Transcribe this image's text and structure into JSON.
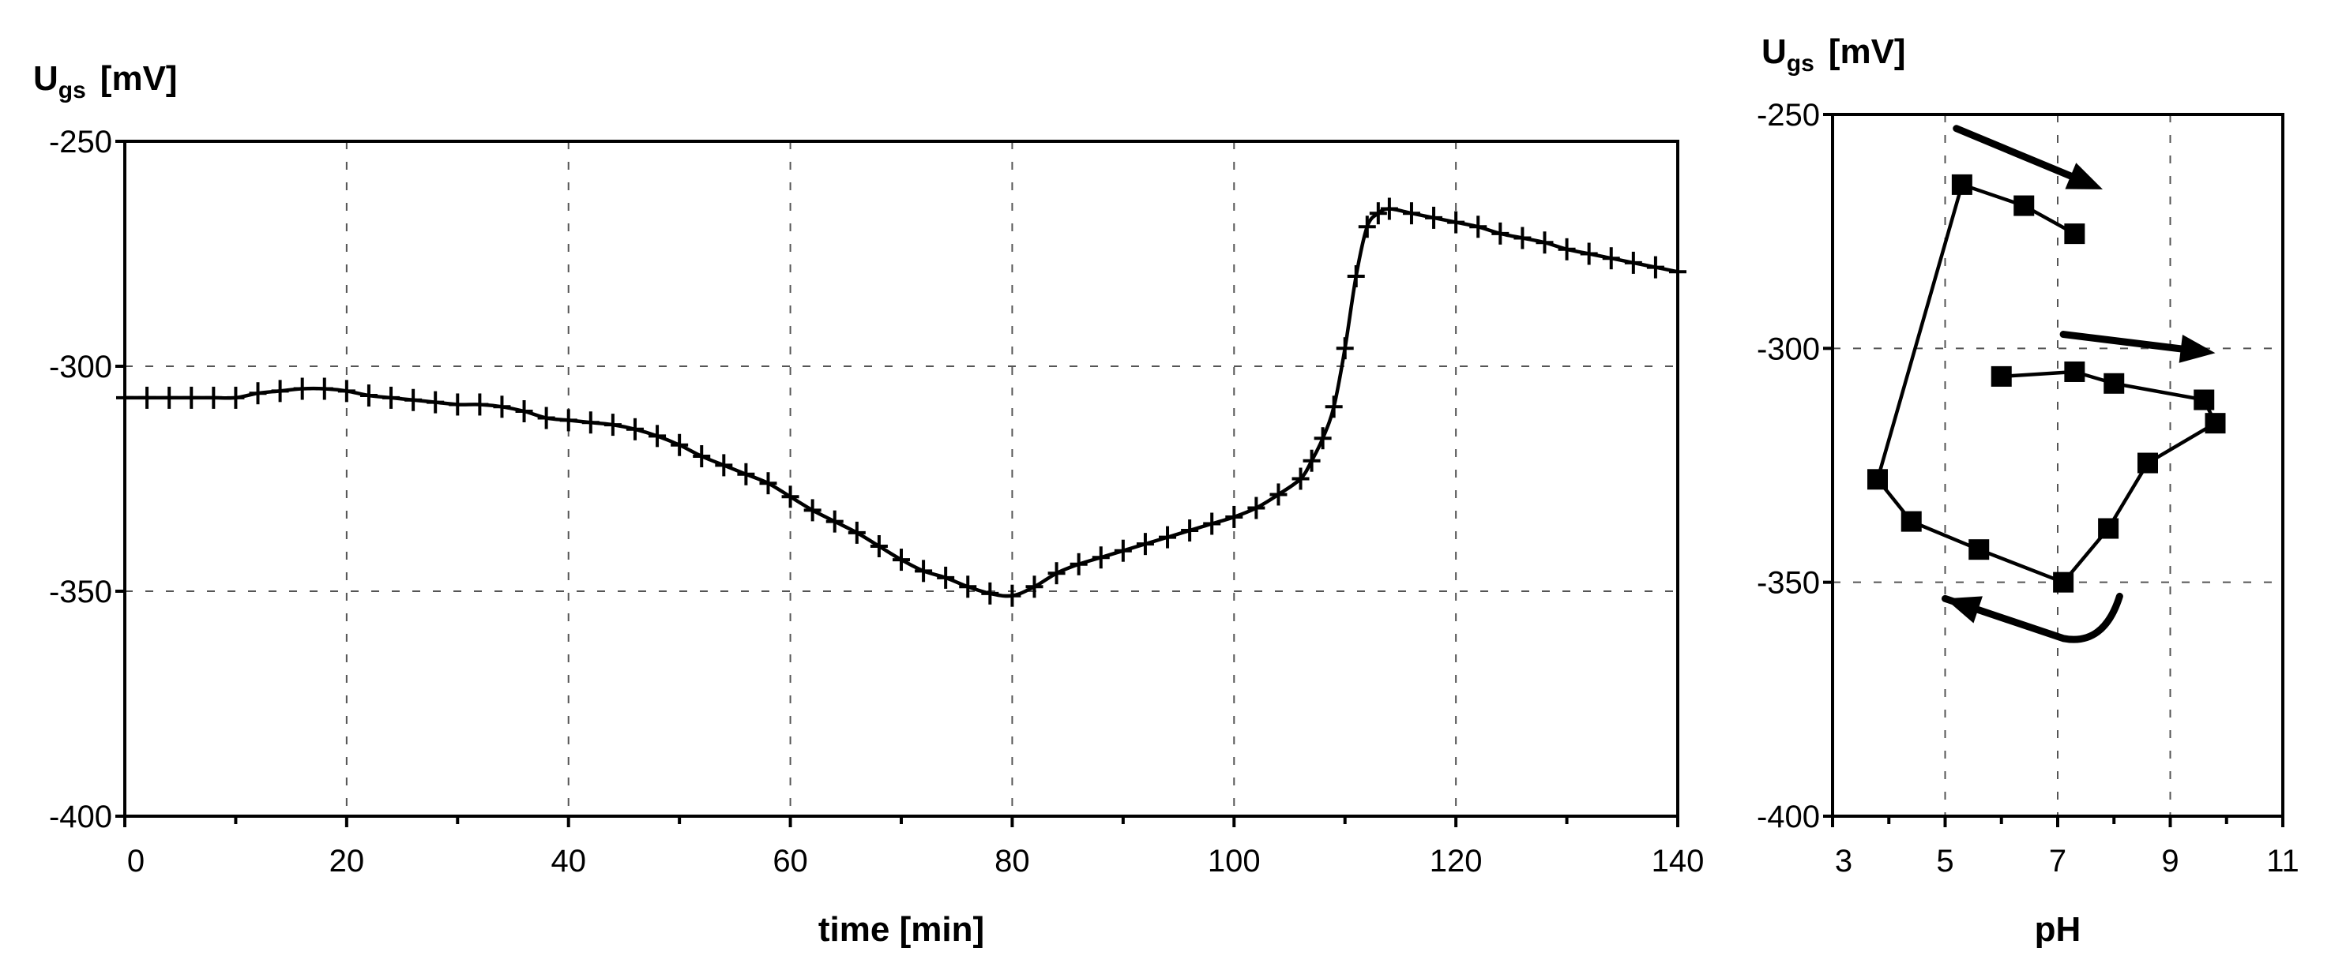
{
  "chart_data": [
    {
      "type": "line",
      "ylabel": "U",
      "ylabel_sub": "gs",
      "ylabel_unit": "[mV]",
      "xlabel": "time [min]",
      "xlim": [
        0,
        140
      ],
      "ylim": [
        -400,
        -250
      ],
      "xticks": [
        0,
        20,
        40,
        60,
        80,
        100,
        120,
        140
      ],
      "yticks": [
        -250,
        -300,
        -350,
        -400
      ],
      "grid": true,
      "marker": "cross",
      "series": [
        {
          "x": [
            0,
            2,
            4,
            6,
            8,
            10,
            12,
            14,
            16,
            18,
            20,
            22,
            24,
            26,
            28,
            30,
            32,
            34,
            36,
            38,
            40,
            42,
            44,
            46,
            48,
            50,
            52,
            54,
            56,
            58,
            60,
            62,
            64,
            66,
            68,
            70,
            72,
            74,
            76,
            78,
            80,
            82,
            84,
            86,
            88,
            90,
            92,
            94,
            96,
            98,
            100,
            102,
            104,
            106,
            107,
            108,
            109,
            110,
            111,
            112,
            113,
            114,
            116,
            118,
            120,
            122,
            124,
            126,
            128,
            130,
            132,
            134,
            136,
            138,
            140
          ],
          "y": [
            -307,
            -307,
            -307,
            -307,
            -307,
            -307,
            -306,
            -305.5,
            -305,
            -305,
            -305.5,
            -306.5,
            -307,
            -307.5,
            -308,
            -308.5,
            -308.5,
            -309,
            -310,
            -311.5,
            -312,
            -312.5,
            -313,
            -314,
            -315.5,
            -317.5,
            -320,
            -322,
            -324,
            -326,
            -329,
            -332,
            -334.5,
            -337,
            -340,
            -343,
            -345.5,
            -347,
            -349,
            -350.5,
            -351,
            -349,
            -346,
            -344,
            -342.5,
            -341,
            -339.5,
            -338,
            -336.5,
            -335,
            -333.5,
            -331.5,
            -328.5,
            -325,
            -321,
            -316,
            -309,
            -296,
            -280,
            -269,
            -266,
            -265,
            -266,
            -267,
            -268,
            -269,
            -270.5,
            -271.5,
            -272.5,
            -274,
            -275,
            -276,
            -277,
            -278,
            -279
          ]
        }
      ]
    },
    {
      "type": "line",
      "ylabel": "U",
      "ylabel_sub": "gs",
      "ylabel_unit": "[mV]",
      "xlabel": "pH",
      "xlim": [
        3,
        11
      ],
      "ylim": [
        -400,
        -250
      ],
      "xticks": [
        3,
        5,
        7,
        9,
        11
      ],
      "yticks": [
        -250,
        -300,
        -350,
        -400
      ],
      "grid": true,
      "marker": "square",
      "series": [
        {
          "x": [
            6.0,
            7.3,
            8.0,
            9.6,
            9.8,
            8.6,
            7.9,
            7.1,
            5.6,
            4.4,
            3.8,
            5.3,
            6.4,
            7.3
          ],
          "y": [
            -306,
            -305,
            -307.5,
            -311,
            -316,
            -324.5,
            -338.5,
            -350,
            -343,
            -337,
            -328,
            -265,
            -269.5,
            -275.5
          ]
        }
      ],
      "arrows": [
        {
          "from": [
            5.2,
            -253
          ],
          "to": [
            7.8,
            -266
          ]
        },
        {
          "from": [
            7.1,
            -297
          ],
          "to": [
            9.8,
            -301
          ]
        },
        {
          "from": [
            8.1,
            -353
          ],
          "to": [
            5.0,
            -353.5
          ],
          "curve_via": [
            7.1,
            -362
          ]
        }
      ]
    }
  ]
}
